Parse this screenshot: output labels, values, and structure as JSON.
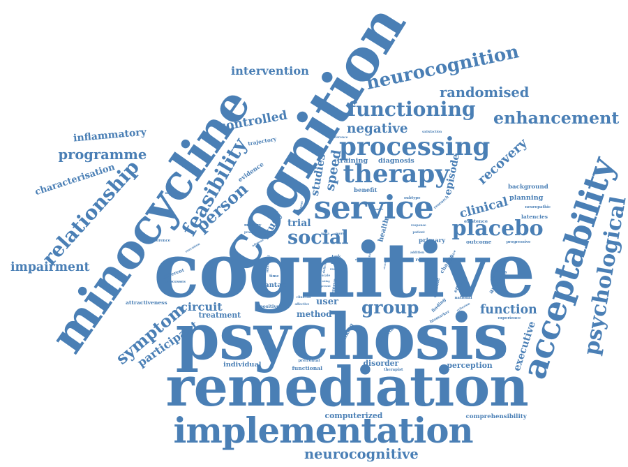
{
  "color": "#4a7fb5",
  "words": [
    {
      "text": "cognitive",
      "weight": 100
    },
    {
      "text": "psychosis",
      "weight": 82
    },
    {
      "text": "remediation",
      "weight": 78
    },
    {
      "text": "cognition",
      "weight": 84
    },
    {
      "text": "minocycline",
      "weight": 66
    },
    {
      "text": "implementation",
      "weight": 52
    },
    {
      "text": "acceptability",
      "weight": 50
    },
    {
      "text": "service",
      "weight": 46
    },
    {
      "text": "processing",
      "weight": 36
    },
    {
      "text": "therapy",
      "weight": 36
    },
    {
      "text": "psychological",
      "weight": 33
    },
    {
      "text": "placebo",
      "weight": 30
    },
    {
      "text": "feasibility",
      "weight": 30
    },
    {
      "text": "relationship",
      "weight": 28
    },
    {
      "text": "functioning",
      "weight": 30
    },
    {
      "text": "neurocognition",
      "weight": 26
    },
    {
      "text": "social",
      "weight": 28
    },
    {
      "text": "group",
      "weight": 26
    },
    {
      "text": "symptom",
      "weight": 26
    },
    {
      "text": "person",
      "weight": 26
    },
    {
      "text": "enhancement",
      "weight": 24
    },
    {
      "text": "neurocognitive",
      "weight": 20
    },
    {
      "text": "randomised",
      "weight": 20
    },
    {
      "text": "programme",
      "weight": 20
    },
    {
      "text": "negative",
      "weight": 19
    },
    {
      "text": "speed",
      "weight": 19
    },
    {
      "text": "recovery",
      "weight": 19
    },
    {
      "text": "function",
      "weight": 18
    },
    {
      "text": "impairment",
      "weight": 17
    },
    {
      "text": "controlled",
      "weight": 17
    },
    {
      "text": "clinical",
      "weight": 17
    },
    {
      "text": "intervention",
      "weight": 16
    },
    {
      "text": "participant",
      "weight": 16
    },
    {
      "text": "circuit",
      "weight": 16
    },
    {
      "text": "studies",
      "weight": 15
    },
    {
      "text": "executive",
      "weight": 14
    },
    {
      "text": "episode",
      "weight": 14
    },
    {
      "text": "inflammatory",
      "weight": 13
    },
    {
      "text": "characterisation",
      "weight": 13
    },
    {
      "text": "study",
      "weight": 14
    },
    {
      "text": "trial",
      "weight": 13
    },
    {
      "text": "user",
      "weight": 13
    },
    {
      "text": "method",
      "weight": 12
    },
    {
      "text": "treatment",
      "weight": 11
    },
    {
      "text": "computerized",
      "weight": 11
    },
    {
      "text": "perception",
      "weight": 11
    },
    {
      "text": "disorder",
      "weight": 11
    },
    {
      "text": "training",
      "weight": 10
    },
    {
      "text": "diagnosis",
      "weight": 10
    },
    {
      "text": "individual",
      "weight": 10
    },
    {
      "text": "cantab",
      "weight": 10
    },
    {
      "text": "health",
      "weight": 10
    },
    {
      "text": "planning",
      "weight": 10
    },
    {
      "text": "comprehensibility",
      "weight": 9
    },
    {
      "text": "background",
      "weight": 9
    },
    {
      "text": "benefit",
      "weight": 9
    },
    {
      "text": "analysis",
      "weight": 9
    },
    {
      "text": "primary",
      "weight": 9
    },
    {
      "text": "outcome",
      "weight": 8
    },
    {
      "text": "evidence",
      "weight": 9
    },
    {
      "text": "trajectory",
      "weight": 8
    },
    {
      "text": "attractiveness",
      "weight": 8
    },
    {
      "text": "latencies",
      "weight": 8
    },
    {
      "text": "functional",
      "weight": 8
    },
    {
      "text": "positive",
      "weight": 7
    },
    {
      "text": "different",
      "weight": 7
    },
    {
      "text": "processes",
      "weight": 6
    },
    {
      "text": "mechanism",
      "weight": 6
    },
    {
      "text": "thinking",
      "weight": 8
    },
    {
      "text": "change",
      "weight": 8
    },
    {
      "text": "efficacy",
      "weight": 7
    },
    {
      "text": "mental",
      "weight": 8
    },
    {
      "text": "existence",
      "weight": 7
    },
    {
      "text": "memory",
      "weight": 6
    },
    {
      "text": "time",
      "weight": 6
    },
    {
      "text": "progressive",
      "weight": 6
    },
    {
      "text": "experience",
      "weight": 6
    },
    {
      "text": "preference",
      "weight": 6
    },
    {
      "text": "problem",
      "weight": 5
    },
    {
      "text": "medication",
      "weight": 5
    },
    {
      "text": "satisfaction",
      "weight": 5
    },
    {
      "text": "difference",
      "weight": 5
    },
    {
      "text": "meta",
      "weight": 5
    },
    {
      "text": "more",
      "weight": 5
    },
    {
      "text": "neuropathic",
      "weight": 6
    },
    {
      "text": "subtype",
      "weight": 6
    },
    {
      "text": "research",
      "weight": 6
    },
    {
      "text": "recent",
      "weight": 7
    },
    {
      "text": "task",
      "weight": 6
    },
    {
      "text": "blind",
      "weight": 6
    },
    {
      "text": "result",
      "weight": 5
    },
    {
      "text": "scale",
      "weight": 5
    },
    {
      "text": "rating",
      "weight": 4
    },
    {
      "text": "present",
      "weight": 4
    },
    {
      "text": "addition",
      "weight": 5
    },
    {
      "text": "patient",
      "weight": 5
    },
    {
      "text": "response",
      "weight": 5
    },
    {
      "text": "national",
      "weight": 6
    },
    {
      "text": "finding",
      "weight": 7
    },
    {
      "text": "biomarker",
      "weight": 6
    },
    {
      "text": "criterion",
      "weight": 5
    },
    {
      "text": "literature",
      "weight": 5
    },
    {
      "text": "measure",
      "weight": 5
    },
    {
      "text": "qualitative",
      "weight": 5
    },
    {
      "text": "therapist",
      "weight": 6
    },
    {
      "text": "prefrontal",
      "weight": 6
    },
    {
      "text": "psychiatric",
      "weight": 5
    },
    {
      "text": "affective",
      "weight": 5
    },
    {
      "text": "clinician",
      "weight": 5
    },
    {
      "text": "adverse",
      "weight": 5
    },
    {
      "text": "execution",
      "weight": 5
    },
    {
      "text": "successful",
      "weight": 5
    },
    {
      "text": "mediate",
      "weight": 6
    },
    {
      "text": "double",
      "weight": 7
    },
    {
      "text": "reserve",
      "weight": 6
    },
    {
      "text": "spectrum",
      "weight": 5
    },
    {
      "text": "illness",
      "weight": 5
    },
    {
      "text": "deficit",
      "weight": 5
    },
    {
      "text": "effect",
      "weight": 4
    },
    {
      "text": "number",
      "weight": 4
    },
    {
      "text": "strategy",
      "weight": 4
    }
  ]
}
